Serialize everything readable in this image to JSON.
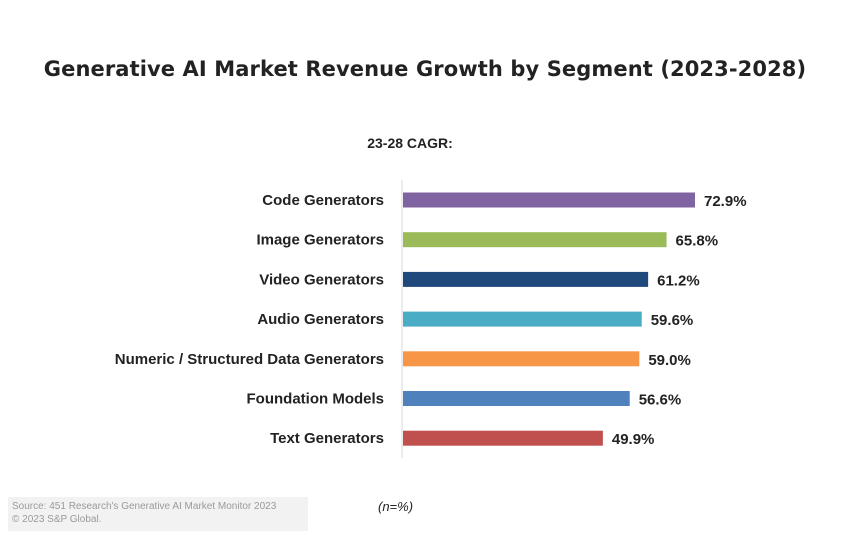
{
  "chart_data": {
    "type": "bar",
    "orientation": "horizontal",
    "title": "Generative AI Market Revenue Growth by Segment (2023-2028)",
    "subtitle": "23-28 CAGR:",
    "categories": [
      "Code Generators",
      "Image Generators",
      "Video Generators",
      "Audio Generators",
      "Numeric / Structured Data Generators",
      "Foundation Models",
      "Text Generators"
    ],
    "values": [
      72.9,
      65.8,
      61.2,
      59.6,
      59.0,
      56.6,
      49.9
    ],
    "value_labels": [
      "72.9%",
      "65.8%",
      "61.2%",
      "59.6%",
      "59.0%",
      "56.6%",
      "49.9%"
    ],
    "colors": [
      "#8064a2",
      "#9bbb59",
      "#1f497d",
      "#4bacc6",
      "#f79646",
      "#4f81bd",
      "#c0504d"
    ],
    "xlim": [
      0,
      80
    ],
    "grid": false,
    "note": "(n=%)"
  },
  "source": {
    "line1": "Source: 451 Research's Generative AI Market Monitor 2023",
    "line2": "© 2023 S&P Global."
  }
}
